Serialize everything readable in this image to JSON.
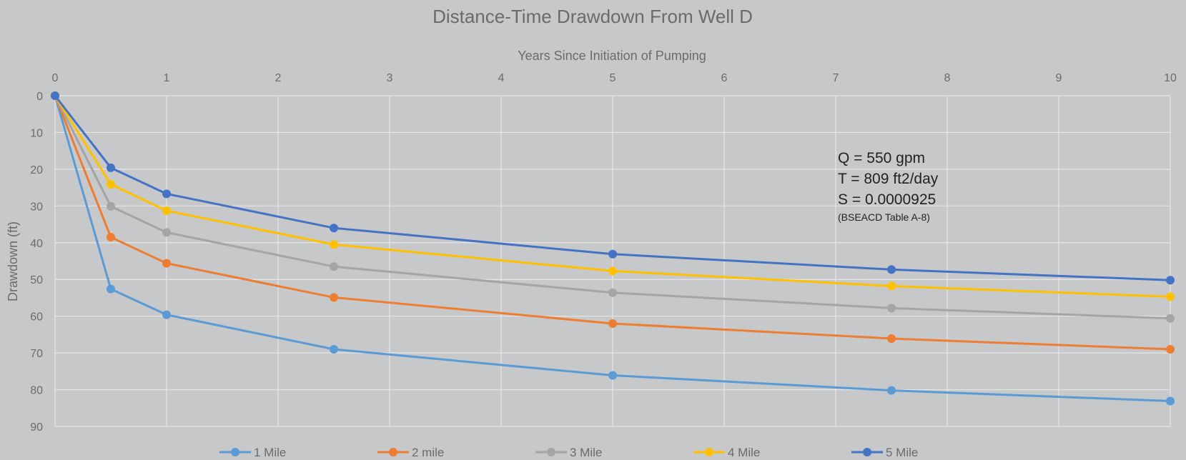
{
  "chart_data": {
    "type": "line",
    "title": "Distance-Time Drawdown From Well D",
    "xlabel": "Years Since Initiation of Pumping",
    "ylabel": "Drawdown (ft)",
    "x_axis_position": "top",
    "y_axis_inverted": true,
    "xlim": [
      0,
      10
    ],
    "ylim": [
      0,
      90
    ],
    "xticks": [
      "0",
      "1",
      "2",
      "3",
      "4",
      "5",
      "6",
      "7",
      "8",
      "9",
      "10"
    ],
    "yticks": [
      "0",
      "10",
      "20",
      "30",
      "40",
      "50",
      "60",
      "70",
      "80",
      "90"
    ],
    "grid": true,
    "legend_position": "bottom",
    "x": [
      0,
      0.5,
      1,
      2.5,
      5,
      7.5,
      10
    ],
    "series": [
      {
        "name": "1 Mile",
        "color": "#5b9bd5",
        "values": [
          0,
          52.6,
          59.6,
          69.0,
          76.1,
          80.2,
          83.1
        ]
      },
      {
        "name": "2 mile",
        "color": "#ed7d31",
        "values": [
          0,
          38.5,
          45.6,
          54.9,
          62.0,
          66.1,
          69.0
        ]
      },
      {
        "name": "3 Mile",
        "color": "#a5a5a5",
        "values": [
          0,
          30.1,
          37.2,
          46.5,
          53.6,
          57.8,
          60.6
        ]
      },
      {
        "name": "4 Mile",
        "color": "#ffc000",
        "values": [
          0,
          24.1,
          31.3,
          40.5,
          47.7,
          51.8,
          54.7
        ]
      },
      {
        "name": "5 Mile",
        "color": "#4472c4",
        "values": [
          0,
          19.6,
          26.7,
          36.0,
          43.1,
          47.3,
          50.2
        ]
      }
    ],
    "annotations": [
      "Q = 550 gpm",
      "T = 809 ft2/day",
      "S = 0.0000925",
      "(BSEACD Table A-8)"
    ]
  }
}
